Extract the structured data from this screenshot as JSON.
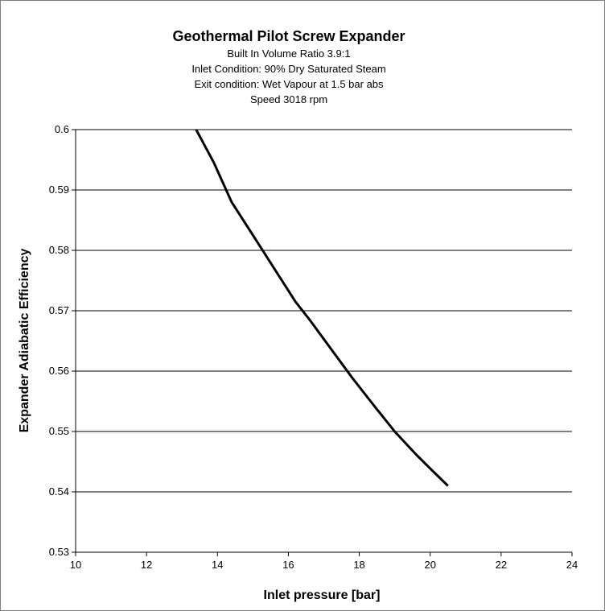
{
  "chart_data": {
    "type": "line",
    "title": "Geothermal Pilot Screw Expander",
    "subtitle_lines": [
      "Built In Volume Ratio 3.9:1",
      "Inlet Condition: 90% Dry Saturated Steam",
      "Exit condition: Wet Vapour at 1.5 bar abs",
      "Speed 3018 rpm"
    ],
    "xlabel": "Inlet pressure [bar]",
    "ylabel": "Expander Adiabatic Efficiency",
    "xlim": [
      10,
      24
    ],
    "ylim": [
      0.53,
      0.6
    ],
    "x_ticks": [
      "10",
      "12",
      "14",
      "16",
      "18",
      "20",
      "22",
      "24"
    ],
    "y_ticks": [
      "0.53",
      "0.54",
      "0.55",
      "0.56",
      "0.57",
      "0.58",
      "0.59",
      "0.6"
    ],
    "grid": "horizontal",
    "legend": "none",
    "series": [
      {
        "x": [
          13.4,
          13.9,
          14.4,
          15.0,
          15.6,
          16.2,
          16.6,
          17.2,
          17.8,
          18.4,
          19.0,
          19.6,
          20.1,
          20.5
        ],
        "y": [
          0.6,
          0.5945,
          0.588,
          0.5825,
          0.577,
          0.5715,
          0.5685,
          0.5637,
          0.5589,
          0.5544,
          0.55,
          0.5462,
          0.5433,
          0.541
        ],
        "color": "#000000"
      }
    ]
  }
}
